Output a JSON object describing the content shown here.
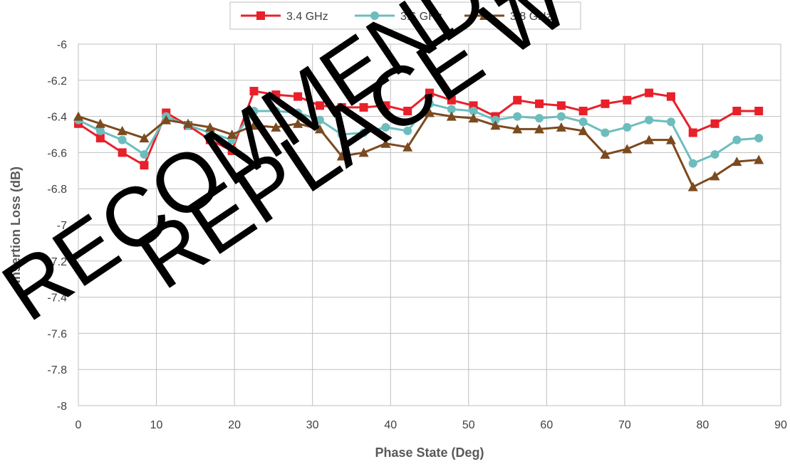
{
  "chart_data": {
    "type": "line",
    "xlabel": "Phase State (Deg)",
    "ylabel": "Insertion Loss (dB)",
    "xlim": [
      0,
      90
    ],
    "ylim": [
      -8,
      -6
    ],
    "xticks": [
      0,
      10,
      20,
      30,
      40,
      50,
      60,
      70,
      80,
      90
    ],
    "yticks": [
      -6,
      -6.2,
      -6.4,
      -6.6,
      -6.8,
      -7,
      -7.2,
      -7.4,
      -7.6,
      -7.8,
      -8
    ],
    "x": [
      0,
      2.8125,
      5.625,
      8.4375,
      11.25,
      14.0625,
      16.875,
      19.6875,
      22.5,
      25.3125,
      28.125,
      30.9375,
      33.75,
      36.5625,
      39.375,
      42.1875,
      45,
      47.8125,
      50.625,
      53.4375,
      56.25,
      59.0625,
      61.875,
      64.6875,
      67.5,
      70.3125,
      73.125,
      75.9375,
      78.75,
      81.5625,
      84.375,
      87.1875
    ],
    "grid": true,
    "legend_position": "top",
    "series": [
      {
        "name": "3.4 GHz",
        "color": "#e8202a",
        "marker": "square",
        "values": [
          -6.44,
          -6.52,
          -6.6,
          -6.67,
          -6.38,
          -6.45,
          -6.53,
          -6.59,
          -6.26,
          -6.28,
          -6.29,
          -6.34,
          -6.35,
          -6.35,
          -6.34,
          -6.37,
          -6.27,
          -6.31,
          -6.34,
          -6.4,
          -6.31,
          -6.33,
          -6.34,
          -6.37,
          -6.33,
          -6.31,
          -6.27,
          -6.29,
          -6.49,
          -6.44,
          -6.37,
          -6.37
        ]
      },
      {
        "name": "3.6 GHz",
        "color": "#6dbdbd",
        "marker": "circle",
        "values": [
          -6.42,
          -6.48,
          -6.53,
          -6.61,
          -6.4,
          -6.45,
          -6.49,
          -6.53,
          -6.37,
          -6.37,
          -6.38,
          -6.42,
          -6.5,
          -6.49,
          -6.46,
          -6.48,
          -6.33,
          -6.36,
          -6.37,
          -6.42,
          -6.4,
          -6.41,
          -6.4,
          -6.43,
          -6.49,
          -6.46,
          -6.42,
          -6.43,
          -6.66,
          -6.61,
          -6.53,
          -6.52
        ]
      },
      {
        "name": "3.8 GHz",
        "color": "#7b4a1f",
        "marker": "triangle",
        "values": [
          -6.4,
          -6.44,
          -6.48,
          -6.52,
          -6.42,
          -6.44,
          -6.46,
          -6.5,
          -6.45,
          -6.46,
          -6.44,
          -6.47,
          -6.62,
          -6.6,
          -6.55,
          -6.57,
          -6.38,
          -6.4,
          -6.41,
          -6.45,
          -6.47,
          -6.47,
          -6.46,
          -6.48,
          -6.61,
          -6.58,
          -6.53,
          -6.53,
          -6.79,
          -6.73,
          -6.65,
          -6.64
        ]
      }
    ]
  },
  "watermark": {
    "line1": "RECOMMENDED W",
    "line2": "REPLACE W"
  }
}
